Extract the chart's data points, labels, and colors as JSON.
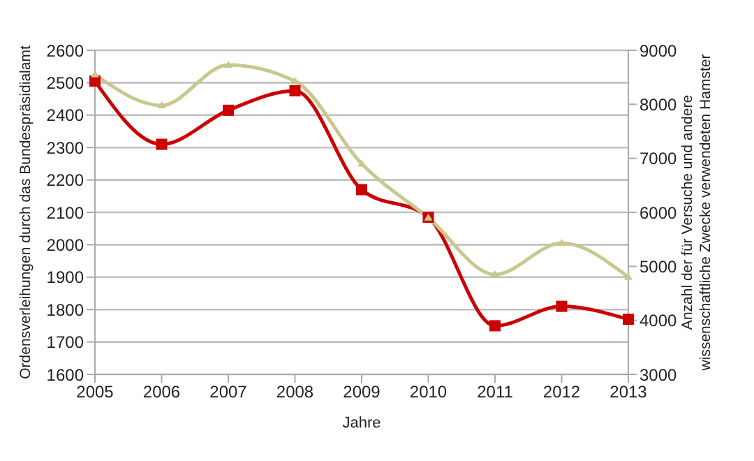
{
  "chart_data": {
    "type": "line",
    "xlabel": "Jahre",
    "ylabel": "Ordensverleihungen durch das Bundespräsidialamt",
    "y2label": "Anzahl der für Versuche und andere wissenschaftliche Zwecke verwendeten Hamster",
    "categories": [
      "2005",
      "2006",
      "2007",
      "2008",
      "2009",
      "2010",
      "2011",
      "2012",
      "2013"
    ],
    "series": [
      {
        "color": "#cc0000",
        "marker": "square",
        "values": [
          2505,
          2310,
          2415,
          2475,
          2170,
          2085,
          1750,
          1810,
          1770
        ]
      },
      {
        "color": "#c8c88e",
        "marker": "triangle",
        "axis": "y2",
        "values": [
          8550,
          7980,
          8730,
          8430,
          6900,
          5900,
          4850,
          5430,
          4800
        ]
      }
    ],
    "ylim": [
      1600,
      2600
    ],
    "yticks": [
      1600,
      1700,
      1800,
      1900,
      2000,
      2100,
      2200,
      2300,
      2400,
      2500,
      2600
    ],
    "y2lim": [
      3000,
      9000
    ],
    "y2ticks": [
      3000,
      4000,
      5000,
      6000,
      7000,
      8000,
      9000
    ],
    "grid": "y"
  }
}
